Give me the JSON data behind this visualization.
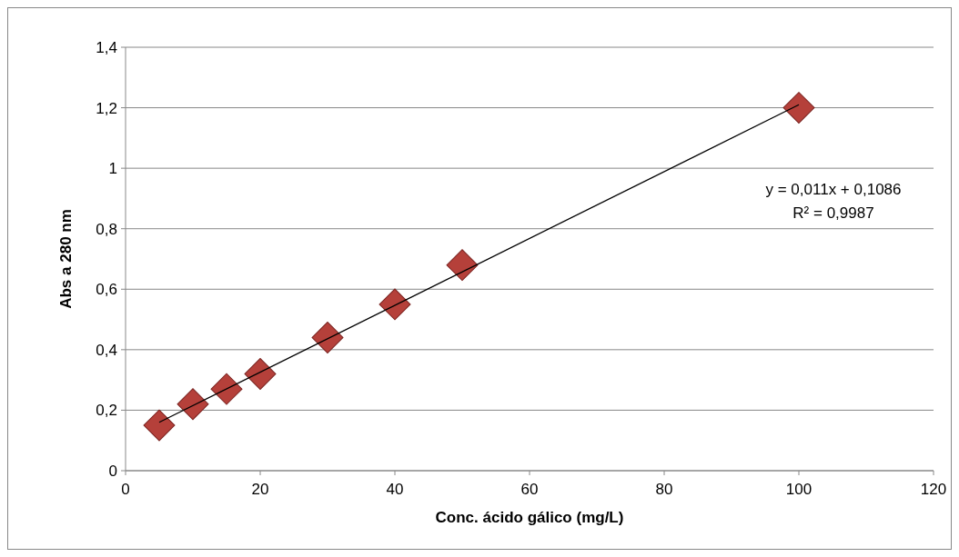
{
  "chart_data": {
    "type": "scatter",
    "xlabel": "Conc. ácido gálico (mg/L)",
    "ylabel": "Abs a 280 nm",
    "xlim": [
      0,
      120
    ],
    "xticks": [
      0,
      20,
      40,
      60,
      80,
      100,
      120
    ],
    "ylim": [
      0,
      1.4
    ],
    "yticks": [
      0,
      {
        "value": 0.2,
        "label": "0,2"
      },
      {
        "value": 0.4,
        "label": "0,4"
      },
      {
        "value": 0.6,
        "label": "0,6"
      },
      {
        "value": 0.8,
        "label": "0,8"
      },
      1,
      {
        "value": 1.2,
        "label": "1,2"
      },
      {
        "value": 1.4,
        "label": "1,4"
      }
    ],
    "grid": "y",
    "series": [
      {
        "marker": "diamond",
        "color": "#b5403a",
        "x": [
          5,
          10,
          15,
          20,
          30,
          40,
          50,
          100
        ],
        "values": [
          0.15,
          0.22,
          0.27,
          0.32,
          0.44,
          0.55,
          0.68,
          1.2
        ]
      },
      {
        "type": "line",
        "color": "#000000",
        "x": [
          5,
          100
        ],
        "values": [
          0.16,
          1.21
        ]
      }
    ],
    "annotations": [
      "y = 0,011x + 0,1086",
      "R² = 0,9987"
    ]
  }
}
